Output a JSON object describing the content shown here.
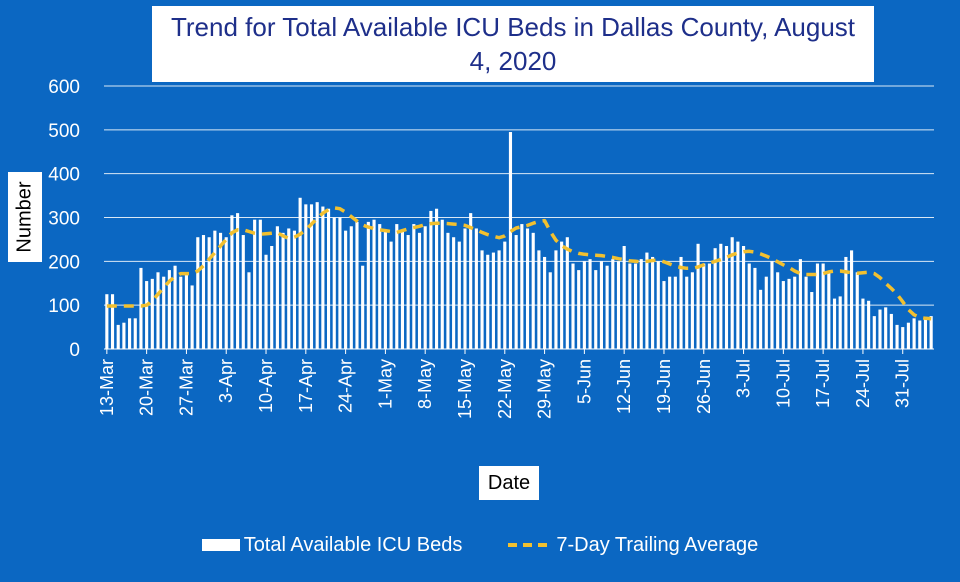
{
  "chart_data": {
    "type": "bar+line",
    "title": "Trend for Total Available ICU Beds in Dallas County, August 4, 2020",
    "xlabel": "Date",
    "ylabel": "Number",
    "ylim": [
      0,
      600
    ],
    "yticks": [
      "0",
      "100",
      "200",
      "300",
      "400",
      "500",
      "600"
    ],
    "xtick_labels": [
      "13-Mar",
      "20-Mar",
      "27-Mar",
      "3-Apr",
      "10-Apr",
      "17-Apr",
      "24-Apr",
      "1-May",
      "8-May",
      "15-May",
      "22-May",
      "29-May",
      "5-Jun",
      "12-Jun",
      "19-Jun",
      "26-Jun",
      "3-Jul",
      "10-Jul",
      "17-Jul",
      "24-Jul",
      "31-Jul"
    ],
    "first_date": "13-Mar",
    "last_date": "4-Aug",
    "series": [
      {
        "name": "Total Available ICU Beds",
        "kind": "bar",
        "values": [
          125,
          125,
          55,
          60,
          70,
          70,
          185,
          155,
          160,
          175,
          165,
          180,
          190,
          165,
          175,
          145,
          255,
          260,
          255,
          270,
          265,
          255,
          305,
          310,
          260,
          175,
          295,
          295,
          215,
          235,
          280,
          265,
          275,
          270,
          345,
          330,
          330,
          335,
          325,
          320,
          300,
          300,
          270,
          280,
          290,
          190,
          290,
          295,
          285,
          270,
          245,
          285,
          270,
          260,
          285,
          265,
          280,
          315,
          320,
          295,
          265,
          255,
          245,
          275,
          310,
          275,
          225,
          215,
          220,
          225,
          245,
          495,
          260,
          285,
          275,
          265,
          225,
          210,
          175,
          225,
          245,
          255,
          195,
          180,
          200,
          205,
          180,
          200,
          190,
          205,
          200,
          235,
          195,
          195,
          205,
          220,
          210,
          200,
          155,
          165,
          165,
          210,
          165,
          175,
          240,
          195,
          195,
          230,
          240,
          235,
          255,
          245,
          235,
          195,
          185,
          135,
          165,
          200,
          175,
          155,
          160,
          165,
          205,
          165,
          130,
          195,
          195,
          175,
          115,
          120,
          210,
          225,
          175,
          115,
          110,
          75,
          90,
          95,
          80,
          55,
          50,
          60,
          70,
          65,
          70,
          75
        ]
      },
      {
        "name": "7-Day Trailing Average",
        "kind": "line",
        "values": [
          98,
          98,
          98,
          98,
          98,
          98,
          98,
          100,
          110,
          125,
          140,
          155,
          165,
          172,
          172,
          172,
          178,
          190,
          205,
          220,
          235,
          250,
          265,
          272,
          272,
          268,
          264,
          262,
          263,
          264,
          265,
          258,
          252,
          255,
          262,
          272,
          285,
          298,
          310,
          318,
          322,
          320,
          312,
          302,
          292,
          283,
          278,
          275,
          272,
          270,
          268,
          266,
          270,
          274,
          277,
          280,
          284,
          286,
          287,
          287,
          286,
          285,
          284,
          282,
          277,
          272,
          266,
          261,
          257,
          254,
          258,
          268,
          276,
          279,
          282,
          287,
          291,
          293,
          268,
          248,
          236,
          228,
          222,
          218,
          216,
          215,
          214,
          213,
          211,
          209,
          206,
          204,
          201,
          200,
          199,
          200,
          202,
          203,
          199,
          194,
          189,
          186,
          184,
          184,
          187,
          192,
          196,
          200,
          204,
          209,
          215,
          219,
          222,
          223,
          221,
          217,
          212,
          206,
          199,
          192,
          186,
          178,
          172,
          170,
          170,
          170,
          172,
          176,
          178,
          178,
          176,
          174,
          173,
          174,
          175,
          172,
          163,
          150,
          138,
          125,
          108,
          90,
          78,
          72,
          70,
          69
        ]
      }
    ]
  },
  "legend": {
    "bars_label": "Total Available ICU Beds",
    "line_label": "7-Day Trailing Average"
  },
  "colors": {
    "background": "#0b67c2",
    "bars": "#ffffff",
    "line": "#f2c02f",
    "gridlines": "#ffffff",
    "title_text": "#1e2f8a"
  }
}
